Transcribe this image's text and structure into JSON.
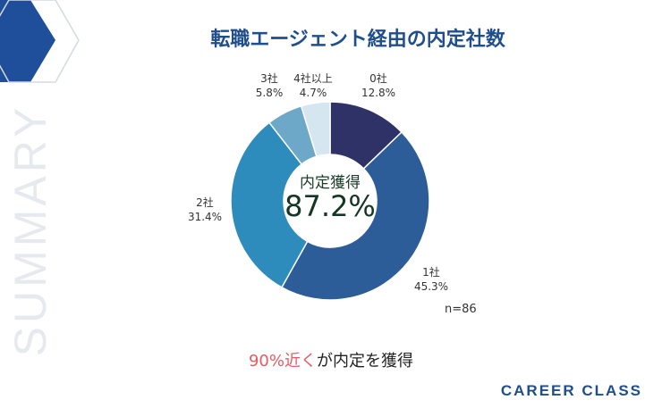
{
  "title": "転職エージェント経由の内定社数",
  "side_text": "SUMMARY",
  "brand": "CAREER CLASS",
  "caption": {
    "highlight": "90%近く",
    "rest": "が内定を獲得"
  },
  "center": {
    "label": "内定獲得",
    "value": "87.2%"
  },
  "n_label": "n=86",
  "colors": {
    "title": "#1f4e8c",
    "highlight": "#e45b63",
    "slice_0": "#2e3266",
    "slice_1": "#2d5d98",
    "slice_2": "#2e8cbd",
    "slice_3": "#6ea8c9",
    "slice_4": "#d6e6f0"
  },
  "chart_data": {
    "type": "pie",
    "title": "転職エージェント経由の内定社数",
    "categories": [
      "0社",
      "1社",
      "2社",
      "3社",
      "4社以上"
    ],
    "values": [
      12.8,
      45.3,
      31.4,
      5.8,
      4.7
    ],
    "value_labels": [
      "12.8%",
      "45.3%",
      "31.4%",
      "5.8%",
      "4.7%"
    ],
    "donut": true,
    "center_text": "内定獲得 87.2%",
    "note": "n=86"
  }
}
